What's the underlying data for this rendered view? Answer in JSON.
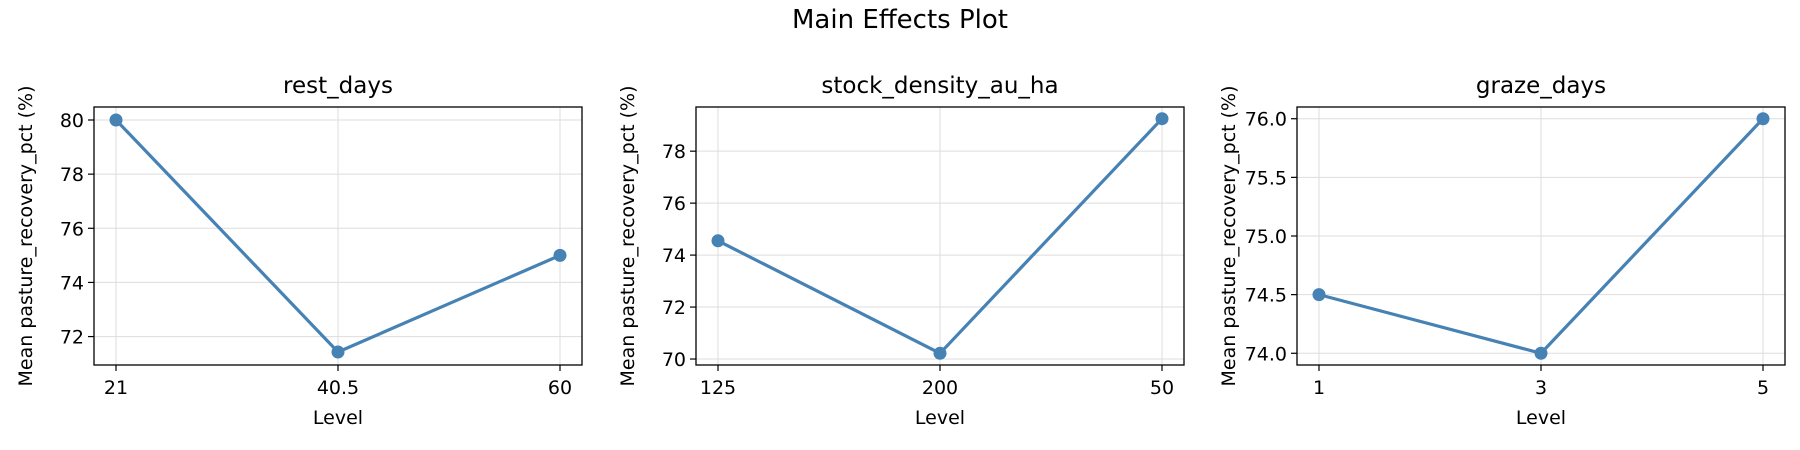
{
  "figure": {
    "title": "Main Effects Plot"
  },
  "colors": {
    "line": "#4682b4",
    "grid": "#dddddd",
    "frame": "#000000"
  },
  "chart_data": [
    {
      "type": "line",
      "title": "rest_days",
      "xlabel": "Level",
      "ylabel": "Mean pasture_recovery_pct (%)",
      "categories": [
        "21",
        "40.5",
        "60"
      ],
      "series": [
        {
          "values": [
            80.0,
            71.43,
            75.0
          ]
        }
      ],
      "ylim": [
        70.95,
        80.48
      ],
      "yticks": [
        72,
        74,
        76,
        78,
        80
      ],
      "ytick_labels": [
        "72",
        "74",
        "76",
        "78",
        "80"
      ],
      "grid": true
    },
    {
      "type": "line",
      "title": "stock_density_au_ha",
      "xlabel": "Level",
      "ylabel": "Mean pasture_recovery_pct (%)",
      "categories": [
        "125",
        "200",
        "50"
      ],
      "series": [
        {
          "values": [
            74.55,
            70.22,
            79.25
          ]
        }
      ],
      "ylim": [
        69.77,
        79.7
      ],
      "yticks": [
        70,
        72,
        74,
        76,
        78
      ],
      "ytick_labels": [
        "70",
        "72",
        "74",
        "76",
        "78"
      ],
      "grid": true
    },
    {
      "type": "line",
      "title": "graze_days",
      "xlabel": "Level",
      "ylabel": "Mean pasture_recovery_pct (%)",
      "categories": [
        "1",
        "3",
        "5"
      ],
      "series": [
        {
          "values": [
            74.5,
            74.0,
            76.0
          ]
        }
      ],
      "ylim": [
        73.9,
        76.1
      ],
      "yticks": [
        74.0,
        74.5,
        75.0,
        75.5,
        76.0
      ],
      "ytick_labels": [
        "74.0",
        "74.5",
        "75.0",
        "75.5",
        "76.0"
      ],
      "grid": true
    }
  ]
}
